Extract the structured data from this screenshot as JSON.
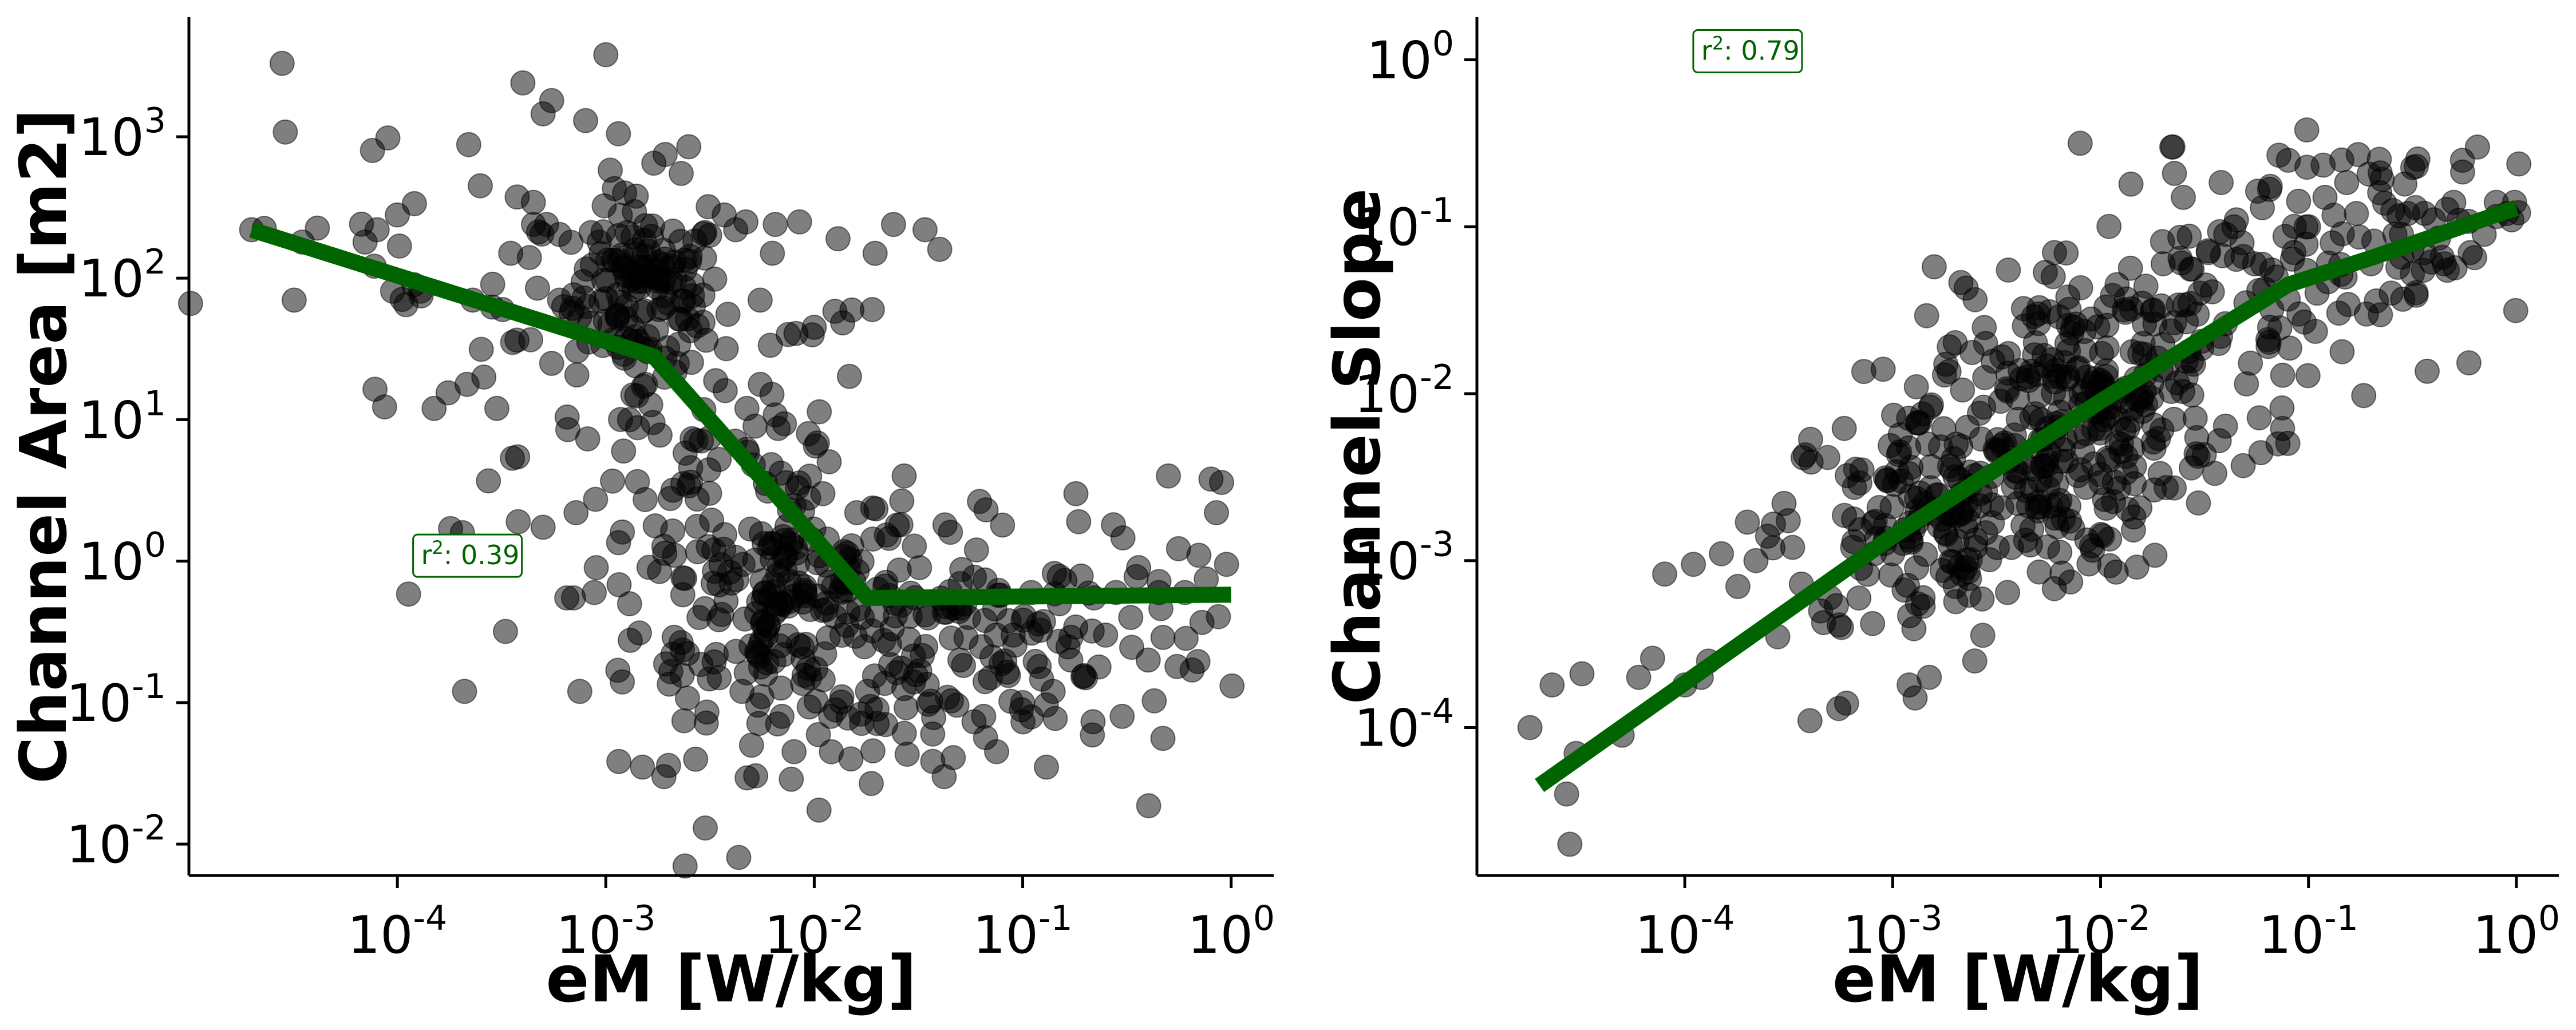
{
  "chart_data": [
    {
      "type": "scatter",
      "xlabel": "eM [W/kg]",
      "ylabel": "Channel Area [m2]",
      "xscale": "log",
      "yscale": "log",
      "xlim": [
        1e-05,
        1.6
      ],
      "ylim": [
        0.006,
        7000
      ],
      "x_ticks": [
        {
          "base": "10",
          "exp": "-4",
          "value": 0.0001
        },
        {
          "base": "10",
          "exp": "-3",
          "value": 0.001
        },
        {
          "base": "10",
          "exp": "-2",
          "value": 0.01
        },
        {
          "base": "10",
          "exp": "-1",
          "value": 0.1
        },
        {
          "base": "10",
          "exp": "0",
          "value": 1
        }
      ],
      "y_ticks": [
        {
          "base": "10",
          "exp": "-2",
          "value": 0.01
        },
        {
          "base": "10",
          "exp": "-1",
          "value": 0.1
        },
        {
          "base": "10",
          "exp": "0",
          "value": 1
        },
        {
          "base": "10",
          "exp": "1",
          "value": 10
        },
        {
          "base": "10",
          "exp": "2",
          "value": 100
        },
        {
          "base": "10",
          "exp": "3",
          "value": 1000
        }
      ],
      "annotation": {
        "text_prefix": "r",
        "text_sup": "2",
        "text_value": ": 0.39",
        "x": 0.00013,
        "y": 0.95
      },
      "marker_color": "#000000",
      "marker_alpha": 0.5,
      "fit_color": "#006400",
      "fit_line": {
        "x": [
          2e-05,
          0.0017,
          0.018,
          1.0
        ],
        "y": [
          220,
          28,
          0.55,
          0.58
        ]
      },
      "points": [
        [
          2e-05,
          220
        ],
        [
          2.3e-05,
          225
        ],
        [
          2.8e-05,
          3300
        ],
        [
          2.9e-05,
          1080
        ],
        [
          3.2e-05,
          70
        ],
        [
          3.5e-05,
          180
        ],
        [
          7e-05,
          180
        ],
        [
          8e-05,
          220
        ],
        [
          9e-05,
          980
        ],
        [
          0.0001,
          280
        ],
        [
          0.00011,
          65
        ],
        [
          0.00012,
          90
        ],
        [
          0.00013,
          75
        ],
        [
          0.00015,
          12
        ],
        [
          0.00018,
          1.7
        ],
        [
          0.00021,
          0.12
        ],
        [
          0.00022,
          880
        ],
        [
          0.00023,
          70
        ],
        [
          0.00025,
          450
        ],
        [
          0.00026,
          20
        ],
        [
          0.0003,
          12
        ],
        [
          0.00032,
          60
        ],
        [
          0.00035,
          150
        ],
        [
          0.00038,
          1.9
        ],
        [
          0.0004,
          2400
        ],
        [
          0.00043,
          140
        ],
        [
          0.0005,
          1450
        ],
        [
          0.00055,
          1800
        ],
        [
          0.00045,
          240
        ],
        [
          0.00047,
          85
        ],
        [
          0.00052,
          240
        ],
        [
          0.00055,
          25
        ],
        [
          0.0006,
          70
        ],
        [
          0.00065,
          0.55
        ],
        [
          0.0007,
          0.55
        ],
        [
          0.00072,
          2.2
        ],
        [
          0.00075,
          0.12
        ],
        [
          0.0008,
          1300
        ],
        [
          0.00085,
          210
        ],
        [
          0.00088,
          0.6
        ],
        [
          0.0009,
          0.9
        ],
        [
          0.00093,
          180
        ],
        [
          0.00095,
          150
        ],
        [
          0.001,
          3800
        ],
        [
          0.00105,
          580
        ],
        [
          0.0011,
          430
        ],
        [
          0.00115,
          1050
        ],
        [
          0.00115,
          200
        ],
        [
          0.0012,
          0.14
        ],
        [
          0.0013,
          10
        ],
        [
          0.0013,
          0.5
        ],
        [
          0.0014,
          380
        ],
        [
          0.0015,
          0.035
        ],
        [
          0.0015,
          95
        ],
        [
          0.0016,
          120
        ],
        [
          0.0017,
          650
        ],
        [
          0.0018,
          60
        ],
        [
          0.0019,
          0.03
        ],
        [
          0.002,
          0.036
        ],
        [
          0.0021,
          0.22
        ],
        [
          0.0022,
          25
        ],
        [
          0.0023,
          550
        ],
        [
          0.0024,
          0.007
        ],
        [
          0.0025,
          850
        ],
        [
          0.0026,
          90
        ],
        [
          0.0028,
          0.4
        ],
        [
          0.003,
          0.013
        ],
        [
          0.0031,
          320
        ],
        [
          0.0033,
          1.2
        ],
        [
          0.0035,
          0.15
        ],
        [
          0.0037,
          280
        ],
        [
          0.004,
          0.7
        ],
        [
          0.0042,
          220
        ],
        [
          0.0045,
          0.12
        ],
        [
          0.0047,
          250
        ],
        [
          0.005,
          0.05
        ],
        [
          0.0052,
          9
        ],
        [
          0.0055,
          70
        ],
        [
          0.0058,
          0.6
        ],
        [
          0.006,
          0.35
        ],
        [
          0.0063,
          150
        ],
        [
          0.0065,
          240
        ],
        [
          0.007,
          0.08
        ],
        [
          0.0072,
          1.4
        ],
        [
          0.0075,
          40
        ],
        [
          0.008,
          0.045
        ],
        [
          0.0083,
          3.3
        ],
        [
          0.0085,
          250
        ],
        [
          0.009,
          0.6
        ],
        [
          0.0095,
          0.15
        ],
        [
          0.01,
          45
        ],
        [
          0.011,
          3
        ],
        [
          0.012,
          0.08
        ],
        [
          0.013,
          190
        ],
        [
          0.014,
          0.7
        ],
        [
          0.015,
          0.04
        ],
        [
          0.016,
          2.2
        ],
        [
          0.017,
          0.4
        ],
        [
          0.018,
          0.12
        ],
        [
          0.019,
          60
        ],
        [
          0.02,
          0.09
        ],
        [
          0.022,
          0.07
        ],
        [
          0.024,
          240
        ],
        [
          0.025,
          1.8
        ],
        [
          0.027,
          4
        ],
        [
          0.03,
          0.14
        ],
        [
          0.032,
          0.9
        ],
        [
          0.034,
          220
        ],
        [
          0.037,
          0.06
        ],
        [
          0.04,
          160
        ],
        [
          0.042,
          0.03
        ],
        [
          0.045,
          1.6
        ],
        [
          0.05,
          0.2
        ],
        [
          0.055,
          0.4
        ],
        [
          0.06,
          1.2
        ],
        [
          0.065,
          0.08
        ],
        [
          0.07,
          0.15
        ],
        [
          0.075,
          0.045
        ],
        [
          0.08,
          1.8
        ],
        [
          0.09,
          0.3
        ],
        [
          0.1,
          0.1
        ],
        [
          0.11,
          0.6
        ],
        [
          0.12,
          0.18
        ],
        [
          0.13,
          0.035
        ],
        [
          0.14,
          0.12
        ],
        [
          0.15,
          0.5
        ],
        [
          0.17,
          0.2
        ],
        [
          0.18,
          3
        ],
        [
          0.2,
          0.15
        ],
        [
          0.22,
          0.55
        ],
        [
          0.25,
          0.3
        ],
        [
          0.28,
          0.6
        ],
        [
          0.3,
          0.08
        ],
        [
          0.33,
          0.4
        ],
        [
          0.36,
          0.9
        ],
        [
          0.4,
          0.2
        ],
        [
          0.45,
          0.6
        ],
        [
          0.5,
          4
        ],
        [
          0.55,
          0.18
        ],
        [
          0.6,
          0.6
        ],
        [
          0.65,
          0.17
        ],
        [
          0.7,
          1.1
        ],
        [
          0.8,
          3.8
        ],
        [
          0.85,
          2.2
        ],
        [
          0.9,
          3.6
        ],
        [
          0.95,
          0.95
        ]
      ],
      "density": [
        {
          "x": 0.0016,
          "y": 80,
          "sx": 0.09,
          "sy": 0.14,
          "n": 110
        },
        {
          "x": 0.0065,
          "y": 0.6,
          "sx": 0.16,
          "sy": 0.2,
          "n": 120
        },
        {
          "x": 0.018,
          "y": 0.25,
          "sx": 0.3,
          "sy": 0.22,
          "n": 110
        },
        {
          "x": 0.003,
          "y": 6,
          "sx": 0.22,
          "sy": 0.32,
          "n": 90
        },
        {
          "x": 0.12,
          "y": 0.25,
          "sx": 0.3,
          "sy": 0.18,
          "n": 80
        },
        {
          "x": 0.00025,
          "y": 60,
          "sx": 0.3,
          "sy": 0.25,
          "n": 40
        }
      ]
    },
    {
      "type": "scatter",
      "xlabel": "eM [W/kg]",
      "ylabel": "Channel Slope",
      "xscale": "log",
      "yscale": "log",
      "xlim": [
        1e-05,
        1.6
      ],
      "ylim": [
        1.3e-05,
        1.8
      ],
      "x_ticks": [
        {
          "base": "10",
          "exp": "-4",
          "value": 0.0001
        },
        {
          "base": "10",
          "exp": "-3",
          "value": 0.001
        },
        {
          "base": "10",
          "exp": "-2",
          "value": 0.01
        },
        {
          "base": "10",
          "exp": "-1",
          "value": 0.1
        },
        {
          "base": "10",
          "exp": "0",
          "value": 1
        }
      ],
      "y_ticks": [
        {
          "base": "10",
          "exp": "-4",
          "value": 0.0001
        },
        {
          "base": "10",
          "exp": "-3",
          "value": 0.001
        },
        {
          "base": "10",
          "exp": "-2",
          "value": 0.01
        },
        {
          "base": "10",
          "exp": "-1",
          "value": 0.1
        },
        {
          "base": "10",
          "exp": "0",
          "value": 1
        }
      ],
      "annotation": {
        "text_prefix": "r",
        "text_sup": "2",
        "text_value": ": 0.79",
        "x": 0.00012,
        "y": 1.0
      },
      "marker_color": "#000000",
      "marker_alpha": 0.5,
      "fit_color": "#006400",
      "fit_line": {
        "x": [
          2e-05,
          0.001,
          0.01,
          0.08,
          0.2,
          1.0
        ],
        "y": [
          4.5e-05,
          0.0014,
          0.009,
          0.045,
          0.065,
          0.13
        ]
      },
      "points": [
        [
          1.8e-05,
          0.0001
        ],
        [
          2.3e-05,
          0.00018
        ],
        [
          2.7e-05,
          4e-05
        ],
        [
          2.8e-05,
          2e-05
        ],
        [
          3e-05,
          7e-05
        ],
        [
          3.2e-05,
          0.00021
        ],
        [
          5e-05,
          9e-05
        ],
        [
          6e-05,
          0.0002
        ],
        [
          7e-05,
          0.00026
        ],
        [
          8e-05,
          0.00083
        ],
        [
          0.0001,
          0.00018
        ],
        [
          0.00011,
          0.00095
        ],
        [
          0.00012,
          0.0002
        ],
        [
          0.00013,
          0.00025
        ],
        [
          0.00015,
          0.0011
        ],
        [
          0.00018,
          0.0007
        ],
        [
          0.0002,
          0.0017
        ],
        [
          0.00022,
          0.001
        ],
        [
          0.00025,
          0.0014
        ],
        [
          0.00028,
          0.00035
        ],
        [
          0.0003,
          0.0022
        ],
        [
          0.00033,
          0.0012
        ],
        [
          0.00038,
          0.0043
        ],
        [
          0.0004,
          0.00011
        ],
        [
          0.00045,
          0.0005
        ],
        [
          0.0005,
          0.0006
        ],
        [
          0.00055,
          0.00013
        ],
        [
          0.0006,
          0.00014
        ],
        [
          0.00065,
          0.0013
        ],
        [
          0.0007,
          0.0009
        ],
        [
          0.0008,
          0.00042
        ],
        [
          0.0009,
          0.014
        ],
        [
          0.001,
          0.0011
        ],
        [
          0.0011,
          0.003
        ],
        [
          0.0012,
          0.00018
        ],
        [
          0.0013,
          0.011
        ],
        [
          0.0014,
          0.0006
        ],
        [
          0.0015,
          0.0002
        ],
        [
          0.0017,
          0.0048
        ],
        [
          0.0018,
          0.015
        ],
        [
          0.002,
          0.0007
        ],
        [
          0.0022,
          0.0025
        ],
        [
          0.0025,
          0.0012
        ],
        [
          0.0028,
          0.02
        ],
        [
          0.003,
          0.0032
        ],
        [
          0.0033,
          0.009
        ],
        [
          0.0036,
          0.055
        ],
        [
          0.004,
          0.0022
        ],
        [
          0.0045,
          0.012
        ],
        [
          0.005,
          0.03
        ],
        [
          0.0055,
          0.004
        ],
        [
          0.006,
          0.07
        ],
        [
          0.0065,
          0.0068
        ],
        [
          0.007,
          0.018
        ],
        [
          0.008,
          0.0035
        ],
        [
          0.009,
          0.028
        ],
        [
          0.01,
          0.012
        ],
        [
          0.011,
          0.004
        ],
        [
          0.012,
          0.045
        ],
        [
          0.013,
          0.009
        ],
        [
          0.014,
          0.18
        ],
        [
          0.016,
          0.02
        ],
        [
          0.018,
          0.0065
        ],
        [
          0.02,
          0.06
        ],
        [
          0.022,
          0.3
        ],
        [
          0.025,
          0.15
        ],
        [
          0.028,
          0.015
        ],
        [
          0.03,
          0.04
        ],
        [
          0.033,
          0.07
        ],
        [
          0.037,
          0.02
        ],
        [
          0.04,
          0.09
        ],
        [
          0.045,
          0.11
        ],
        [
          0.05,
          0.035
        ],
        [
          0.055,
          0.06
        ],
        [
          0.06,
          0.13
        ],
        [
          0.065,
          0.025
        ],
        [
          0.07,
          0.05
        ],
        [
          0.08,
          0.25
        ],
        [
          0.085,
          0.07
        ],
        [
          0.09,
          0.03
        ],
        [
          0.1,
          0.1
        ],
        [
          0.11,
          0.04
        ],
        [
          0.12,
          0.15
        ],
        [
          0.13,
          0.08
        ],
        [
          0.15,
          0.05
        ],
        [
          0.17,
          0.12
        ],
        [
          0.19,
          0.03
        ],
        [
          0.2,
          0.06
        ],
        [
          0.22,
          0.16
        ],
        [
          0.25,
          0.04
        ],
        [
          0.28,
          0.09
        ],
        [
          0.3,
          0.12
        ],
        [
          0.33,
          0.23
        ],
        [
          0.36,
          0.07
        ],
        [
          0.4,
          0.11
        ],
        [
          0.45,
          0.06
        ],
        [
          0.5,
          0.14
        ],
        [
          0.55,
          0.25
        ],
        [
          0.6,
          0.07
        ],
        [
          0.65,
          0.3
        ],
        [
          0.7,
          0.09
        ],
        [
          0.8,
          0.14
        ],
        [
          0.9,
          0.12
        ],
        [
          0.95,
          0.11
        ],
        [
          0.98,
          0.14
        ]
      ],
      "density": [
        {
          "x": 0.0015,
          "y": 0.0016,
          "sx": 0.18,
          "sy": 0.18,
          "n": 130
        },
        {
          "x": 0.005,
          "y": 0.005,
          "sx": 0.16,
          "sy": 0.2,
          "n": 160
        },
        {
          "x": 0.012,
          "y": 0.012,
          "sx": 0.18,
          "sy": 0.2,
          "n": 120
        },
        {
          "x": 0.05,
          "y": 0.04,
          "sx": 0.25,
          "sy": 0.2,
          "n": 70
        },
        {
          "x": 0.35,
          "y": 0.09,
          "sx": 0.2,
          "sy": 0.15,
          "n": 50
        }
      ]
    }
  ]
}
